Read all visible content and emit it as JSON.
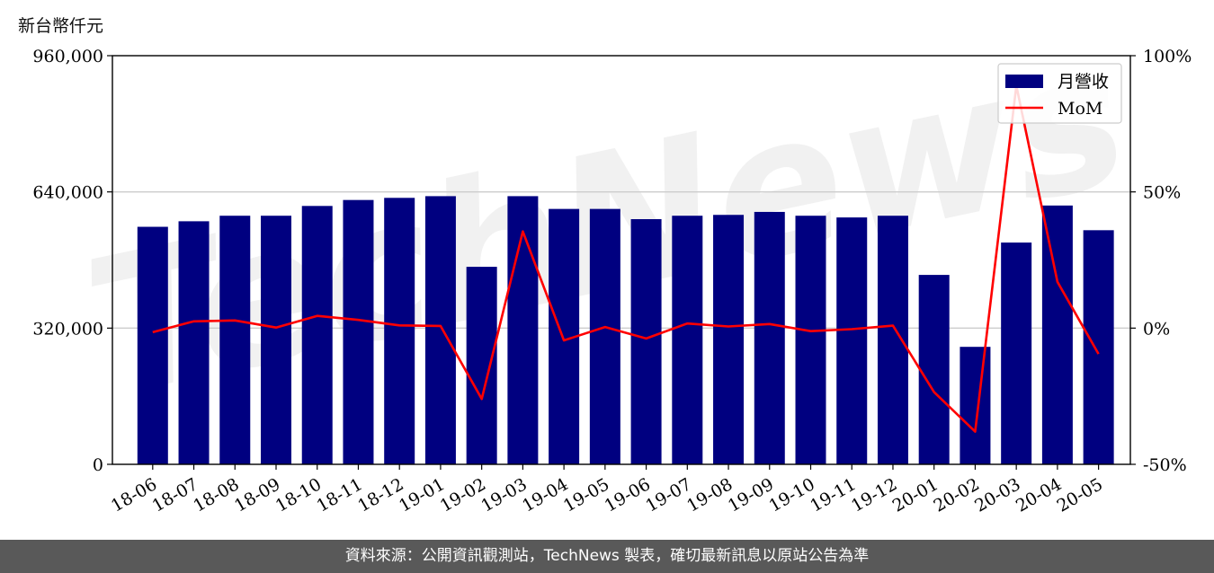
{
  "unit_label": "新台幣仟元",
  "footer_text": "資料來源：公開資訊觀測站，TechNews 製表，確切最新訊息以原站公告為準",
  "watermark": "TechNews",
  "colors": {
    "bar": "#000080",
    "line": "#ff0000",
    "grid": "#cccccc",
    "footer_bg": "#595959"
  },
  "chart_data": {
    "type": "bar",
    "categories": [
      "18-06",
      "18-07",
      "18-08",
      "18-09",
      "18-10",
      "18-11",
      "18-12",
      "19-01",
      "19-02",
      "19-03",
      "19-04",
      "19-05",
      "19-06",
      "19-07",
      "19-08",
      "19-09",
      "19-10",
      "19-11",
      "19-12",
      "20-01",
      "20-02",
      "20-03",
      "20-04",
      "20-05"
    ],
    "series": [
      {
        "name": "月營收",
        "type": "bar",
        "axis": "left",
        "values": [
          558000,
          571000,
          584000,
          584000,
          607000,
          621000,
          626000,
          630000,
          464000,
          630000,
          600000,
          600000,
          576000,
          584000,
          586000,
          593000,
          584000,
          580000,
          584000,
          445000,
          276000,
          521000,
          608000,
          550000
        ]
      },
      {
        "name": "MoM",
        "type": "line",
        "axis": "right",
        "values": [
          -1.5,
          2.5,
          2.8,
          0.2,
          4.5,
          3.0,
          1.0,
          0.8,
          -26.0,
          35.5,
          -4.5,
          0.4,
          -3.8,
          1.7,
          0.6,
          1.5,
          -1.1,
          -0.4,
          0.9,
          -23.5,
          -38.0,
          89.0,
          17.0,
          -9.5
        ]
      }
    ],
    "y_left": {
      "ylim": [
        0,
        960000
      ],
      "ticks": [
        "0",
        "320,000",
        "640,000",
        "960,000"
      ],
      "tick_values": [
        0,
        320000,
        640000,
        960000
      ]
    },
    "y_right": {
      "ylim": [
        -50,
        100
      ],
      "ticks": [
        "-50%",
        "0%",
        "50%",
        "100%"
      ],
      "tick_values": [
        -50,
        0,
        50,
        100
      ]
    },
    "grid": "horizontal",
    "legend_position": "top-right"
  }
}
